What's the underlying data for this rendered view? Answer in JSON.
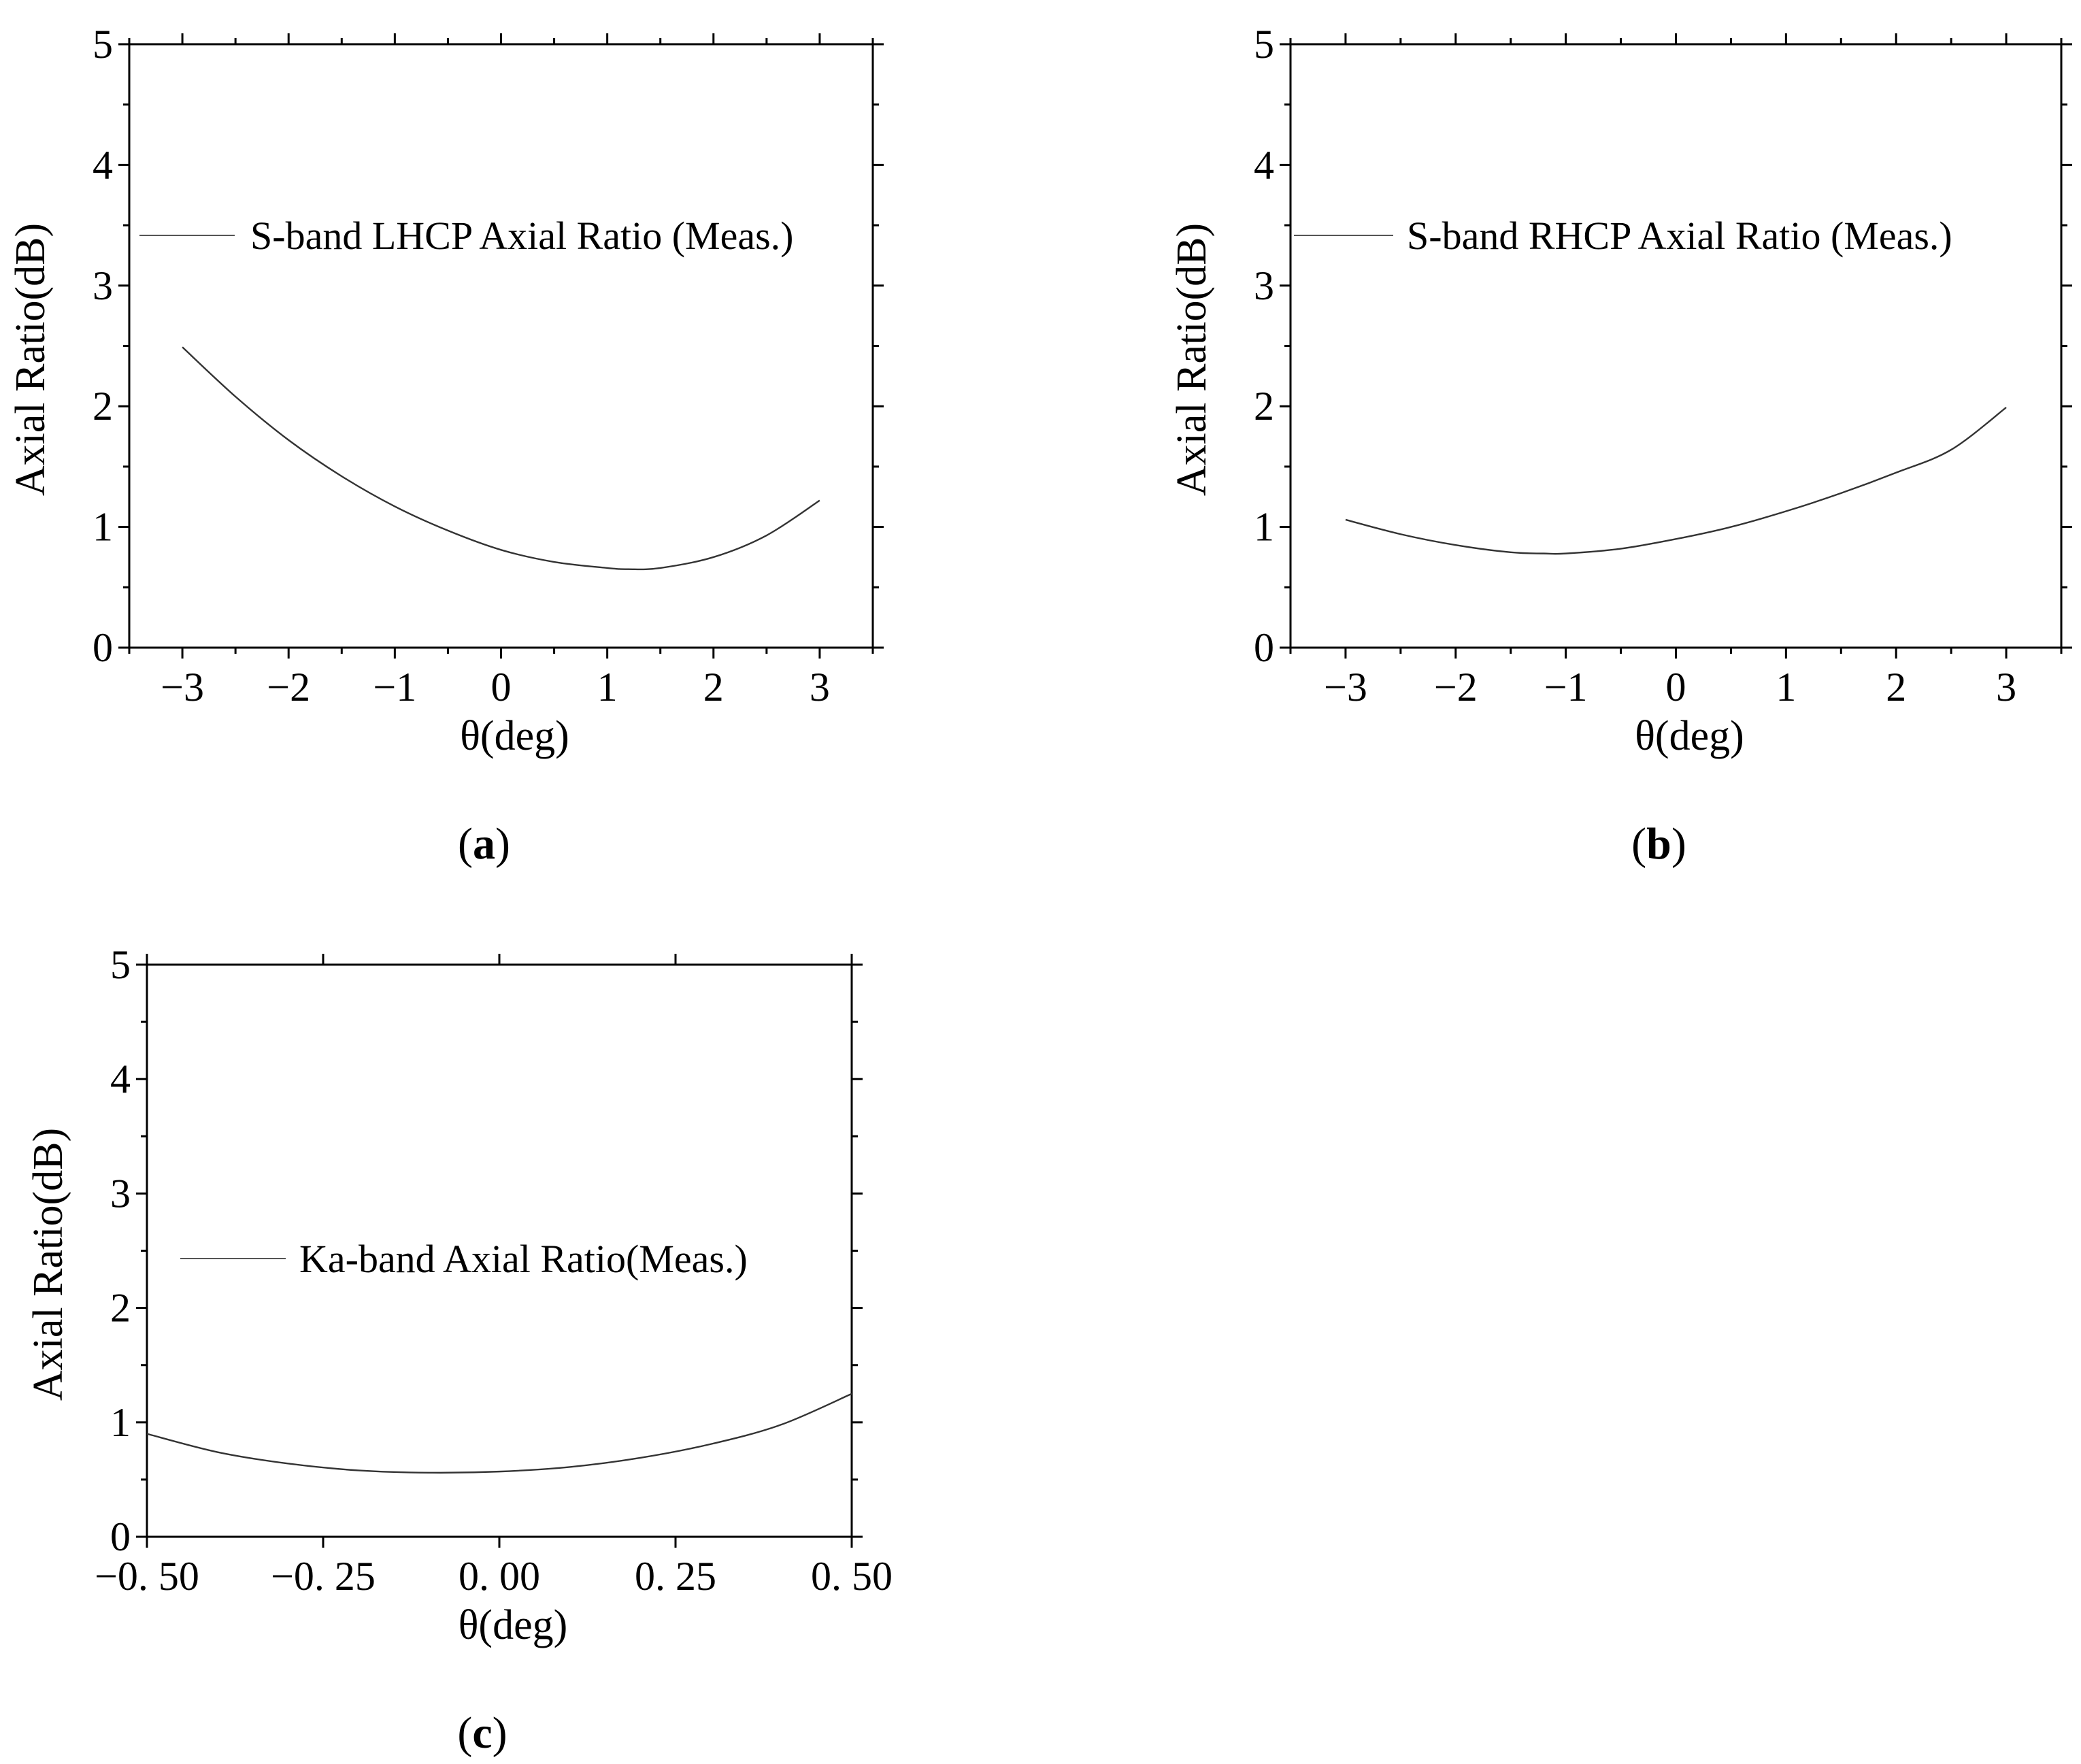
{
  "chart_data": [
    {
      "id": "a",
      "type": "line",
      "panel_label": "a",
      "xlabel": "θ(deg)",
      "ylabel": "Axial Ratio(dB)",
      "xlim": [
        -3.5,
        3.5
      ],
      "ylim": [
        0,
        5
      ],
      "xticks": [
        -3,
        -2,
        -1,
        0,
        1,
        2,
        3
      ],
      "xtick_labels": [
        "−3",
        "−2",
        "−1",
        "0",
        "1",
        "2",
        "3"
      ],
      "yticks": [
        0,
        1,
        2,
        3,
        4,
        5
      ],
      "ytick_labels": [
        "0",
        "1",
        "2",
        "3",
        "4",
        "5"
      ],
      "legend_placement": "upper-left",
      "series": [
        {
          "name": "S-band LHCP Axial Ratio (Meas.)",
          "x": [
            -3,
            -2.5,
            -2,
            -1.5,
            -1,
            -0.5,
            0,
            0.5,
            1,
            1.2,
            1.5,
            2,
            2.5,
            3
          ],
          "y": [
            2.49,
            2.08,
            1.72,
            1.42,
            1.17,
            0.97,
            0.81,
            0.71,
            0.66,
            0.65,
            0.66,
            0.75,
            0.93,
            1.22
          ]
        }
      ]
    },
    {
      "id": "b",
      "type": "line",
      "panel_label": "b",
      "xlabel": "θ(deg)",
      "ylabel": "Axial Ratio(dB)",
      "xlim": [
        -3.5,
        3.5
      ],
      "ylim": [
        0,
        5
      ],
      "xticks": [
        -3,
        -2,
        -1,
        0,
        1,
        2,
        3
      ],
      "xtick_labels": [
        "−3",
        "−2",
        "−1",
        "0",
        "1",
        "2",
        "3"
      ],
      "yticks": [
        0,
        1,
        2,
        3,
        4,
        5
      ],
      "ytick_labels": [
        "0",
        "1",
        "2",
        "3",
        "4",
        "5"
      ],
      "legend_placement": "upper-left",
      "series": [
        {
          "name": "S-band RHCP Axial Ratio (Meas.)",
          "x": [
            -3,
            -2.5,
            -2,
            -1.5,
            -1.2,
            -1,
            -0.5,
            0,
            0.5,
            1,
            1.5,
            2,
            2.5,
            3
          ],
          "y": [
            1.06,
            0.94,
            0.85,
            0.79,
            0.78,
            0.78,
            0.82,
            0.9,
            1.0,
            1.13,
            1.28,
            1.45,
            1.64,
            1.99
          ]
        }
      ]
    },
    {
      "id": "c",
      "type": "line",
      "panel_label": "c",
      "xlabel": "θ(deg)",
      "ylabel": "Axial Ratio(dB)",
      "xlim": [
        -0.5,
        0.5
      ],
      "ylim": [
        0,
        5
      ],
      "xticks": [
        -0.5,
        -0.25,
        0,
        0.25,
        0.5
      ],
      "xtick_labels": [
        "−0. 50",
        "−0. 25",
        "0. 00",
        "0. 25",
        "0. 50"
      ],
      "yticks": [
        0,
        1,
        2,
        3,
        4,
        5
      ],
      "ytick_labels": [
        "0",
        "1",
        "2",
        "3",
        "4",
        "5"
      ],
      "legend_placement": "center-left",
      "series": [
        {
          "name": "Ka-band Axial Ratio(Meas.)",
          "x": [
            -0.5,
            -0.4,
            -0.3,
            -0.2,
            -0.1,
            0,
            0.1,
            0.2,
            0.3,
            0.4,
            0.5
          ],
          "y": [
            0.9,
            0.74,
            0.64,
            0.58,
            0.56,
            0.57,
            0.61,
            0.69,
            0.81,
            0.98,
            1.25
          ]
        }
      ]
    }
  ]
}
